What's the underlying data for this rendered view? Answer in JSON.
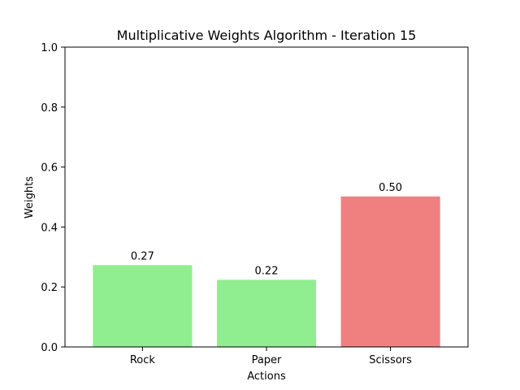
{
  "chart_data": {
    "type": "bar",
    "title": "Multiplicative Weights Algorithm - Iteration 15",
    "xlabel": "Actions",
    "ylabel": "Weights",
    "categories": [
      "Rock",
      "Paper",
      "Scissors"
    ],
    "values": [
      0.273,
      0.224,
      0.502
    ],
    "data_labels": [
      "0.27",
      "0.22",
      "0.50"
    ],
    "bar_colors": [
      "#90ee90",
      "#90ee90",
      "#f08080"
    ],
    "ylim": [
      0,
      1.0
    ],
    "yticks": [
      0.0,
      0.2,
      0.4,
      0.6,
      0.8,
      1.0
    ],
    "ytick_labels": [
      "0.0",
      "0.2",
      "0.4",
      "0.6",
      "0.8",
      "1.0"
    ],
    "grid": false,
    "legend": "none"
  }
}
